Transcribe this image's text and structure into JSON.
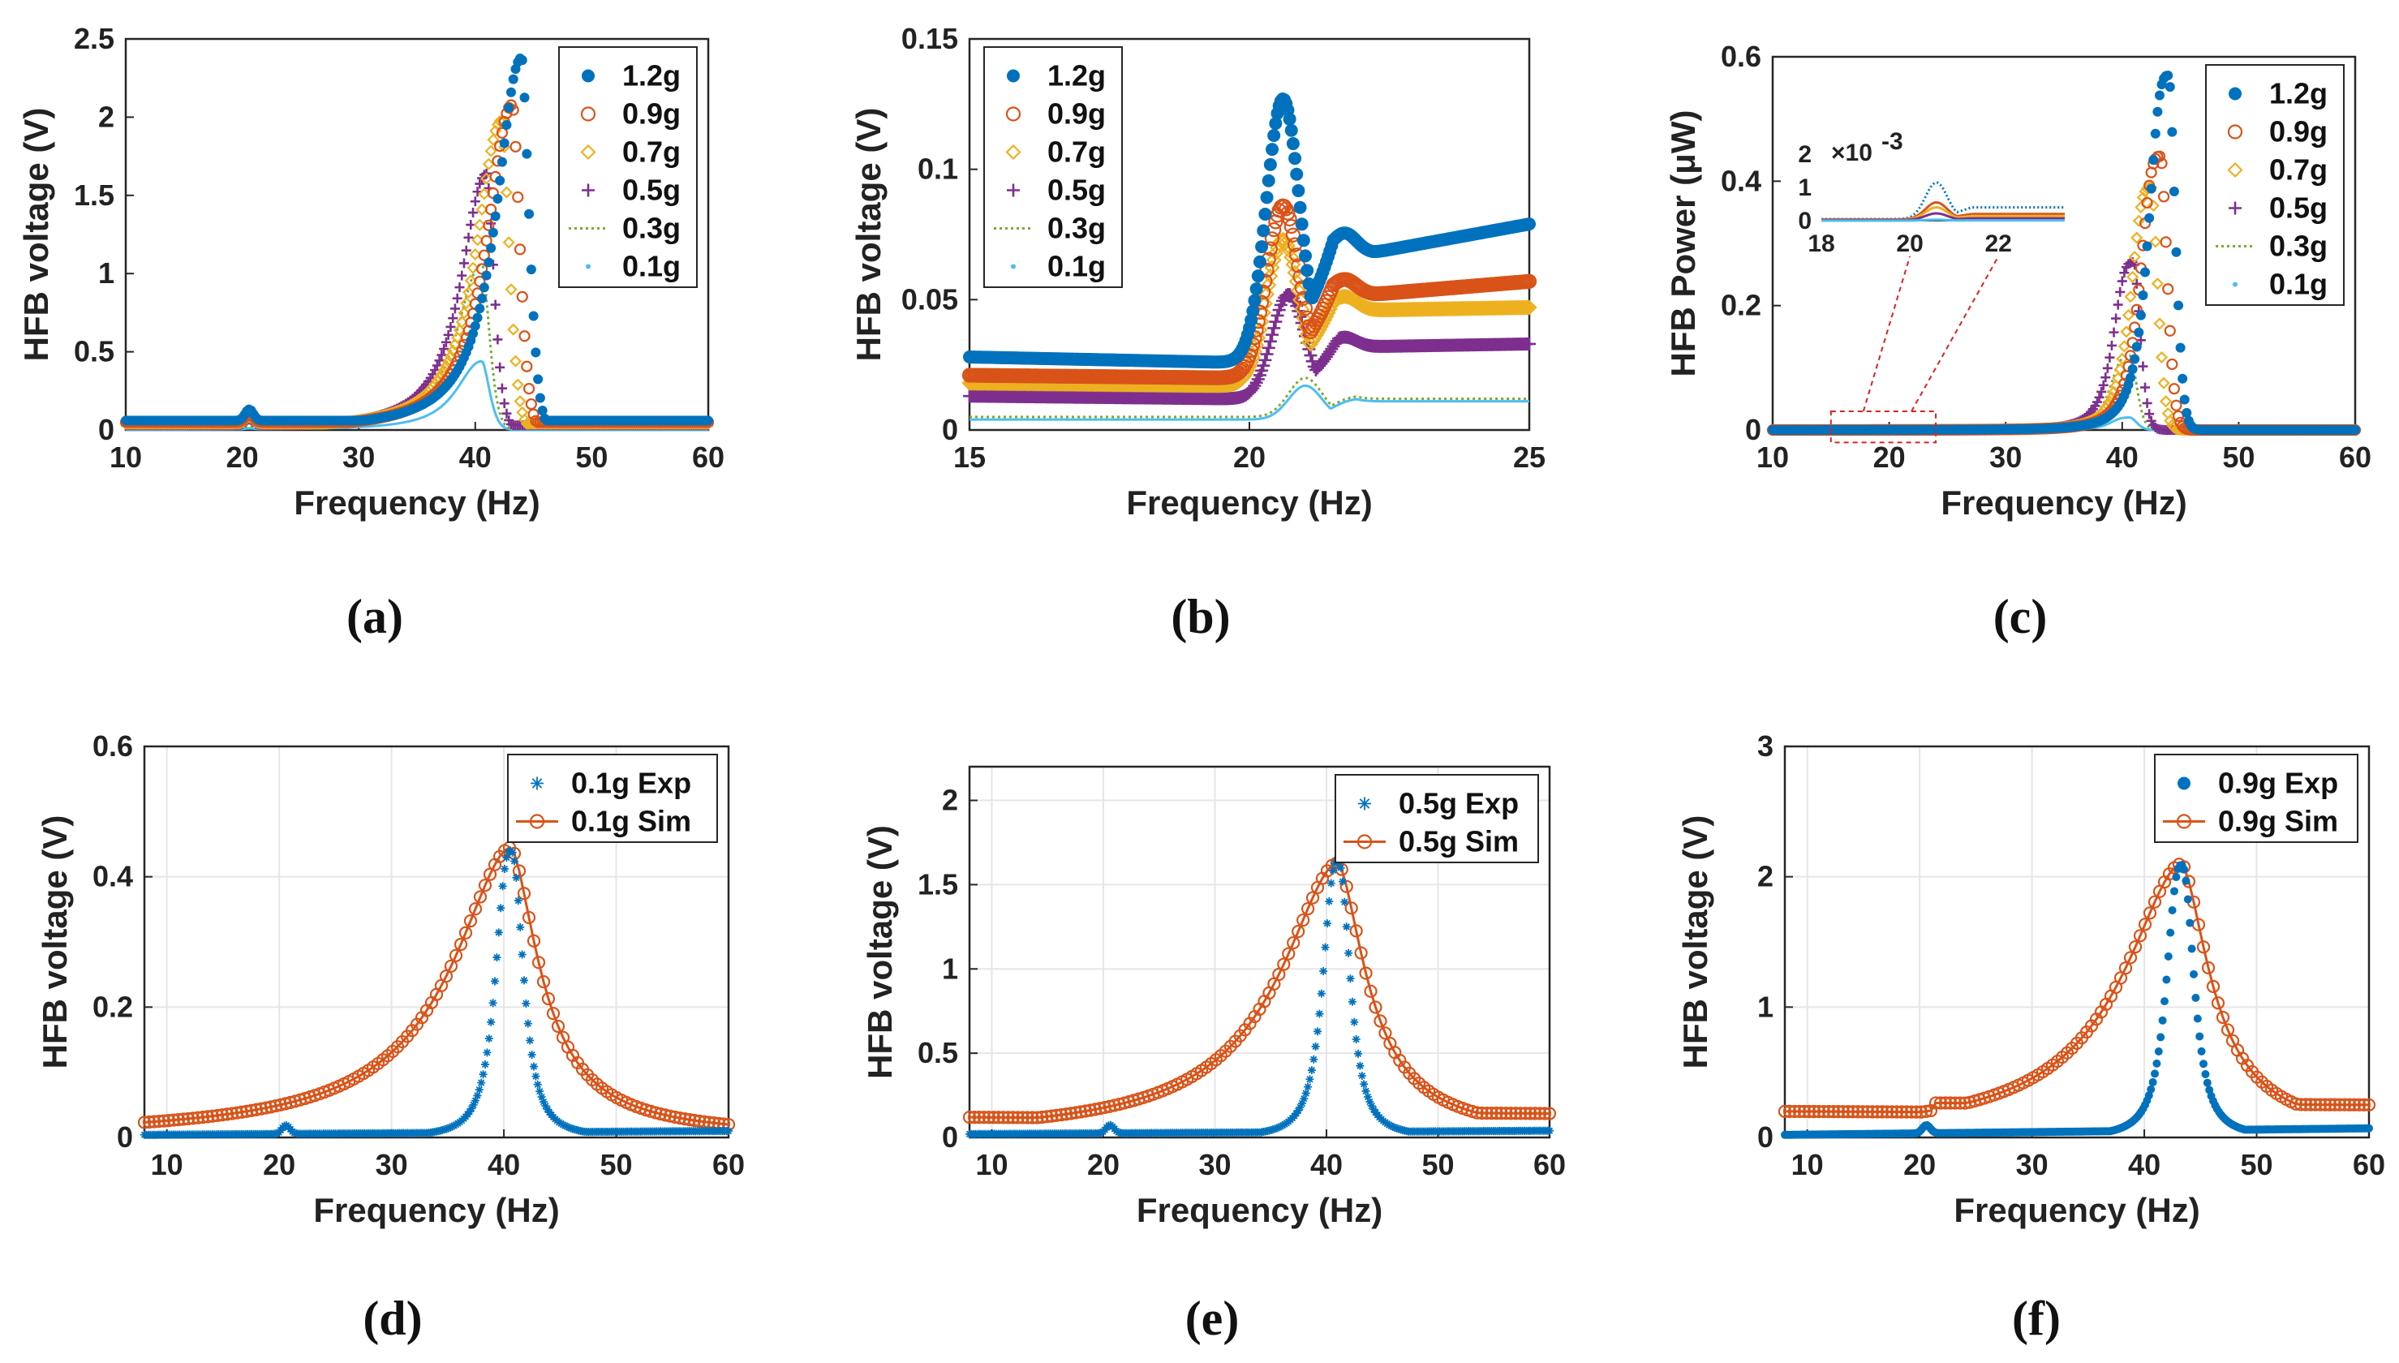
{
  "chart_data": [
    {
      "id": "a",
      "panel_label": "(a)",
      "type": "line",
      "xlabel": "Frequency (Hz)",
      "ylabel": "HFB voltage (V)",
      "xlim": [
        10,
        60
      ],
      "ylim": [
        0,
        2.5
      ],
      "xticks": [
        "10",
        "20",
        "30",
        "40",
        "50",
        "60"
      ],
      "yticks": [
        "0",
        "0.5",
        "1",
        "1.5",
        "2",
        "2.5"
      ],
      "legend_position": "top-right",
      "series": [
        {
          "name": "1.2g",
          "peak_x": 44.0,
          "peak_y": 2.38,
          "base_y": 0.06,
          "bump_y": 0.12
        },
        {
          "name": "0.9g",
          "peak_x": 43.2,
          "peak_y": 2.08,
          "base_y": 0.05,
          "bump_y": 0.09
        },
        {
          "name": "0.7g",
          "peak_x": 42.3,
          "peak_y": 1.98,
          "base_y": 0.04,
          "bump_y": 0.07
        },
        {
          "name": "0.5g",
          "peak_x": 41.0,
          "peak_y": 1.64,
          "base_y": 0.03,
          "bump_y": 0.06
        },
        {
          "name": "0.3g",
          "peak_x": 40.6,
          "peak_y": 1.06,
          "base_y": 0.01,
          "bump_y": 0.02
        },
        {
          "name": "0.1g",
          "peak_x": 40.6,
          "peak_y": 0.44,
          "base_y": 0.0,
          "bump_y": 0.01
        }
      ]
    },
    {
      "id": "b",
      "panel_label": "(b)",
      "type": "line",
      "xlabel": "Frequency (Hz)",
      "ylabel": "HFB voltage (V)",
      "xlim": [
        15,
        25
      ],
      "ylim": [
        0,
        0.15
      ],
      "xticks": [
        "15",
        "20",
        "25"
      ],
      "yticks": [
        "0",
        "0.05",
        "0.1",
        "0.15"
      ],
      "legend_position": "top-left",
      "series": [
        {
          "name": "1.2g",
          "start_y": 0.028,
          "dip_y": 0.026,
          "peak_x": 20.6,
          "peak_y": 0.127,
          "valley_y": 0.068,
          "end_y": 0.079
        },
        {
          "name": "0.9g",
          "start_y": 0.021,
          "dip_y": 0.02,
          "peak_x": 20.6,
          "peak_y": 0.086,
          "valley_y": 0.052,
          "end_y": 0.057
        },
        {
          "name": "0.7g",
          "start_y": 0.018,
          "dip_y": 0.017,
          "peak_x": 20.6,
          "peak_y": 0.073,
          "valley_y": 0.046,
          "end_y": 0.047
        },
        {
          "name": "0.5g",
          "start_y": 0.013,
          "dip_y": 0.012,
          "peak_x": 20.7,
          "peak_y": 0.052,
          "valley_y": 0.032,
          "end_y": 0.033
        },
        {
          "name": "0.3g",
          "start_y": 0.005,
          "dip_y": 0.005,
          "peak_x": 21.0,
          "peak_y": 0.02,
          "valley_y": 0.012,
          "end_y": 0.012
        },
        {
          "name": "0.1g",
          "start_y": 0.004,
          "dip_y": 0.004,
          "peak_x": 21.0,
          "peak_y": 0.017,
          "valley_y": 0.011,
          "end_y": 0.011
        }
      ]
    },
    {
      "id": "c",
      "panel_label": "(c)",
      "type": "line",
      "xlabel": "Frequency (Hz)",
      "ylabel": "HFB Power (μW)",
      "xlim": [
        10,
        60
      ],
      "ylim": [
        0,
        0.6
      ],
      "xticks": [
        "10",
        "20",
        "30",
        "40",
        "50",
        "60"
      ],
      "yticks": [
        "0",
        "0.2",
        "0.4",
        "0.6"
      ],
      "legend_position": "top-right",
      "series": [
        {
          "name": "1.2g",
          "peak_x": 44.0,
          "peak_y": 0.57
        },
        {
          "name": "0.9g",
          "peak_x": 43.3,
          "peak_y": 0.44
        },
        {
          "name": "0.7g",
          "peak_x": 42.5,
          "peak_y": 0.39
        },
        {
          "name": "0.5g",
          "peak_x": 41.0,
          "peak_y": 0.27
        },
        {
          "name": "0.3g",
          "peak_x": 40.7,
          "peak_y": 0.12
        },
        {
          "name": "0.1g",
          "peak_x": 40.7,
          "peak_y": 0.02
        }
      ],
      "inset": {
        "xlim": [
          18,
          23.5
        ],
        "ylim": [
          0,
          2
        ],
        "xticks": [
          "18",
          "20",
          "22"
        ],
        "yticks": [
          "0",
          "1",
          "2"
        ],
        "exponent_label": "×10",
        "exponent_power": "-3",
        "zoom_region_x": [
          15,
          24
        ],
        "series": [
          {
            "name": "1.2g",
            "base_y": 0.05,
            "peak_y": 1.15,
            "end_y": 0.4
          },
          {
            "name": "0.9g",
            "base_y": 0.04,
            "peak_y": 0.55,
            "end_y": 0.2
          },
          {
            "name": "0.7g",
            "base_y": 0.03,
            "peak_y": 0.4,
            "end_y": 0.14
          },
          {
            "name": "0.5g",
            "base_y": 0.02,
            "peak_y": 0.22,
            "end_y": 0.07
          },
          {
            "name": "0.1g",
            "base_y": 0.0,
            "peak_y": 0.03,
            "end_y": 0.01
          }
        ]
      }
    },
    {
      "id": "d",
      "panel_label": "(d)",
      "type": "line",
      "xlabel": "Frequency (Hz)",
      "ylabel": "HFB voltage (V)",
      "xlim": [
        8,
        60
      ],
      "ylim": [
        0,
        0.6
      ],
      "xticks": [
        "10",
        "20",
        "30",
        "40",
        "50",
        "60"
      ],
      "yticks": [
        "0",
        "0.2",
        "0.4",
        "0.6"
      ],
      "legend_position": "top-right",
      "series": [
        {
          "name": "0.1g Exp",
          "marker": "star",
          "peak_x": 40.6,
          "peak_y": 0.44,
          "base_y": 0.004,
          "end_y": 0.01
        },
        {
          "name": "0.1g Sim",
          "marker": "circle",
          "peak_x": 40.6,
          "peak_y": 0.445,
          "base_y": 0.014,
          "end_y": 0.014
        }
      ]
    },
    {
      "id": "e",
      "panel_label": "(e)",
      "type": "line",
      "xlabel": "Frequency (Hz)",
      "ylabel": "HFB voltage (V)",
      "xlim": [
        8,
        60
      ],
      "ylim": [
        0,
        2.2
      ],
      "xticks": [
        "10",
        "20",
        "30",
        "40",
        "50",
        "60"
      ],
      "yticks": [
        "0",
        "0.5",
        "1",
        "1.5",
        "2"
      ],
      "legend_position": "top-right",
      "series": [
        {
          "name": "0.5g Exp",
          "marker": "star",
          "peak_x": 41.0,
          "peak_y": 1.64,
          "base_y": 0.02,
          "end_y": 0.04
        },
        {
          "name": "0.5g Sim",
          "marker": "circle",
          "peak_x": 41.0,
          "peak_y": 1.63,
          "base_y": 0.12,
          "end_y": 0.1
        }
      ]
    },
    {
      "id": "f",
      "panel_label": "(f)",
      "type": "line",
      "xlabel": "Frequency (Hz)",
      "ylabel": "HFB voltage (V)",
      "xlim": [
        8,
        60
      ],
      "ylim": [
        0,
        3
      ],
      "xticks": [
        "10",
        "20",
        "30",
        "40",
        "50",
        "60"
      ],
      "yticks": [
        "0",
        "1",
        "2",
        "3"
      ],
      "legend_position": "top-right",
      "series": [
        {
          "name": "0.9g Exp",
          "marker": "dot",
          "peak_x": 43.3,
          "peak_y": 2.09,
          "base_y": 0.02,
          "end_y": 0.07
        },
        {
          "name": "0.9g Sim",
          "marker": "circle",
          "peak_x": 43.3,
          "peak_y": 2.1,
          "base_y": 0.2,
          "end_y": 0.18
        }
      ]
    }
  ],
  "colors": {
    "1.2g": "#0072BD",
    "0.9g": "#D95319",
    "0.7g": "#EDB120",
    "0.5g": "#7E2F8E",
    "0.3g": "#77AC30",
    "0.1g": "#4DBEEE",
    "exp": "#0072BD",
    "sim": "#D95319",
    "zoom": "#E02020"
  }
}
